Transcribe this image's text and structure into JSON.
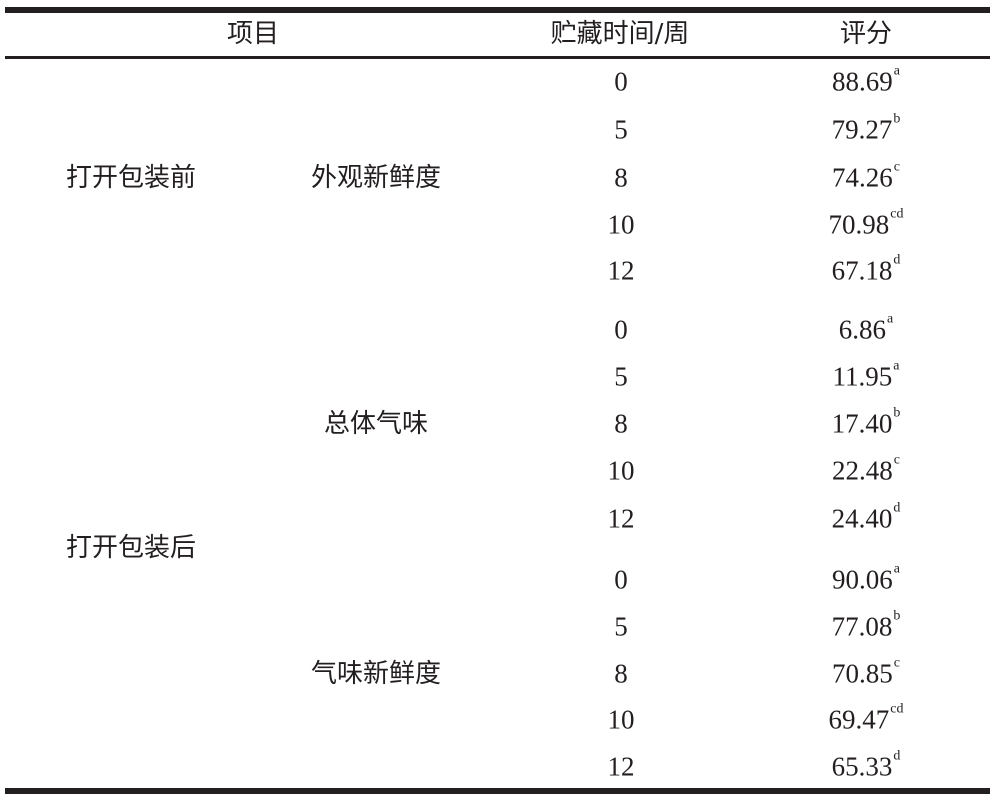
{
  "table": {
    "headers": {
      "item": "项目",
      "weeks": "贮藏时间/周",
      "score": "评分"
    },
    "groups": [
      {
        "label": "打开包装前",
        "subgroups": [
          "外观新鲜度"
        ]
      },
      {
        "label": "打开包装后",
        "subgroups": [
          "总体气味",
          "气味新鲜度"
        ]
      }
    ],
    "subgroups": [
      {
        "label": "外观新鲜度",
        "group": "打开包装前",
        "rows": [
          {
            "weeks": "0",
            "score": "88.69",
            "sig": "a"
          },
          {
            "weeks": "5",
            "score": "79.27",
            "sig": "b"
          },
          {
            "weeks": "8",
            "score": "74.26",
            "sig": "c"
          },
          {
            "weeks": "10",
            "score": "70.98",
            "sig": "cd"
          },
          {
            "weeks": "12",
            "score": "67.18",
            "sig": "d"
          }
        ]
      },
      {
        "label": "总体气味",
        "group": "打开包装后",
        "rows": [
          {
            "weeks": "0",
            "score": "6.86",
            "sig": "a"
          },
          {
            "weeks": "5",
            "score": "11.95",
            "sig": "a"
          },
          {
            "weeks": "8",
            "score": "17.40",
            "sig": "b"
          },
          {
            "weeks": "10",
            "score": "22.48",
            "sig": "c"
          },
          {
            "weeks": "12",
            "score": "24.40",
            "sig": "d"
          }
        ]
      },
      {
        "label": "气味新鲜度",
        "group": "打开包装后",
        "rows": [
          {
            "weeks": "0",
            "score": "90.06",
            "sig": "a"
          },
          {
            "weeks": "5",
            "score": "77.08",
            "sig": "b"
          },
          {
            "weeks": "8",
            "score": "70.85",
            "sig": "c"
          },
          {
            "weeks": "10",
            "score": "69.47",
            "sig": "cd"
          },
          {
            "weeks": "12",
            "score": "65.33",
            "sig": "d"
          }
        ]
      }
    ]
  }
}
